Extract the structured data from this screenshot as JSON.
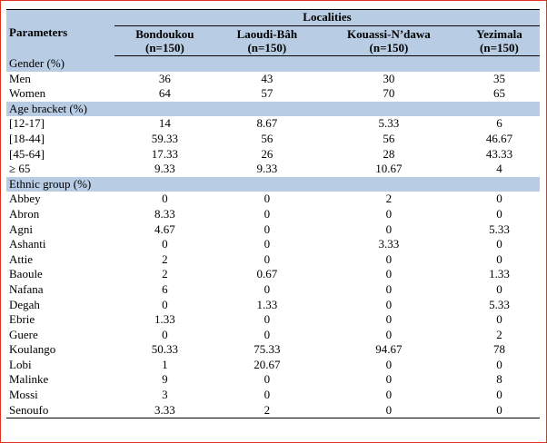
{
  "table": {
    "header_group": "Localities",
    "param_header": "Parameters",
    "columns": [
      {
        "name": "Bondoukou",
        "n": "(n=150)"
      },
      {
        "name": "Laoudi-Bâh",
        "n": "(n=150)"
      },
      {
        "name": "Kouassi-N’dawa",
        "n": "(n=150)"
      },
      {
        "name": "Yezimala",
        "n": "(n=150)"
      }
    ],
    "sections": [
      {
        "title": "Gender (%)",
        "rows": [
          {
            "label": "Men",
            "values": [
              "36",
              "43",
              "30",
              "35"
            ]
          },
          {
            "label": "Women",
            "values": [
              "64",
              "57",
              "70",
              "65"
            ]
          }
        ]
      },
      {
        "title": "Age bracket (%)",
        "rows": [
          {
            "label": "[12-17]",
            "values": [
              "14",
              "8.67",
              "5.33",
              "6"
            ]
          },
          {
            "label": "[18-44]",
            "values": [
              "59.33",
              "56",
              "56",
              "46.67"
            ]
          },
          {
            "label": "[45-64]",
            "values": [
              "17.33",
              "26",
              "28",
              "43.33"
            ]
          },
          {
            "label": "≥ 65",
            "values": [
              "9.33",
              "9.33",
              "10.67",
              "4"
            ]
          }
        ]
      },
      {
        "title": "Ethnic group (%)",
        "rows": [
          {
            "label": "Abbey",
            "values": [
              "0",
              "0",
              "2",
              "0"
            ]
          },
          {
            "label": "Abron",
            "values": [
              "8.33",
              "0",
              "0",
              "0"
            ]
          },
          {
            "label": "Agni",
            "values": [
              "4.67",
              "0",
              "0",
              "5.33"
            ]
          },
          {
            "label": "Ashanti",
            "values": [
              "0",
              "0",
              "3.33",
              "0"
            ]
          },
          {
            "label": "Attie",
            "values": [
              "2",
              "0",
              "0",
              "0"
            ]
          },
          {
            "label": "Baoule",
            "values": [
              "2",
              "0.67",
              "0",
              "1.33"
            ]
          },
          {
            "label": "Nafana",
            "values": [
              "6",
              "0",
              "0",
              "0"
            ]
          },
          {
            "label": "Degah",
            "values": [
              "0",
              "1.33",
              "0",
              "5.33"
            ]
          },
          {
            "label": "Ebrie",
            "values": [
              "1.33",
              "0",
              "0",
              "0"
            ]
          },
          {
            "label": "Guere",
            "values": [
              "0",
              "0",
              "0",
              "2"
            ]
          },
          {
            "label": "Koulango",
            "values": [
              "50.33",
              "75.33",
              "94.67",
              "78"
            ]
          },
          {
            "label": "Lobi",
            "values": [
              "1",
              "20.67",
              "0",
              "0"
            ]
          },
          {
            "label": "Malinke",
            "values": [
              "9",
              "0",
              "0",
              "8"
            ]
          },
          {
            "label": "Mossi",
            "values": [
              "3",
              "0",
              "0",
              "0"
            ]
          },
          {
            "label": "Senoufo",
            "values": [
              "3.33",
              "2",
              "0",
              "0"
            ]
          }
        ]
      }
    ]
  }
}
